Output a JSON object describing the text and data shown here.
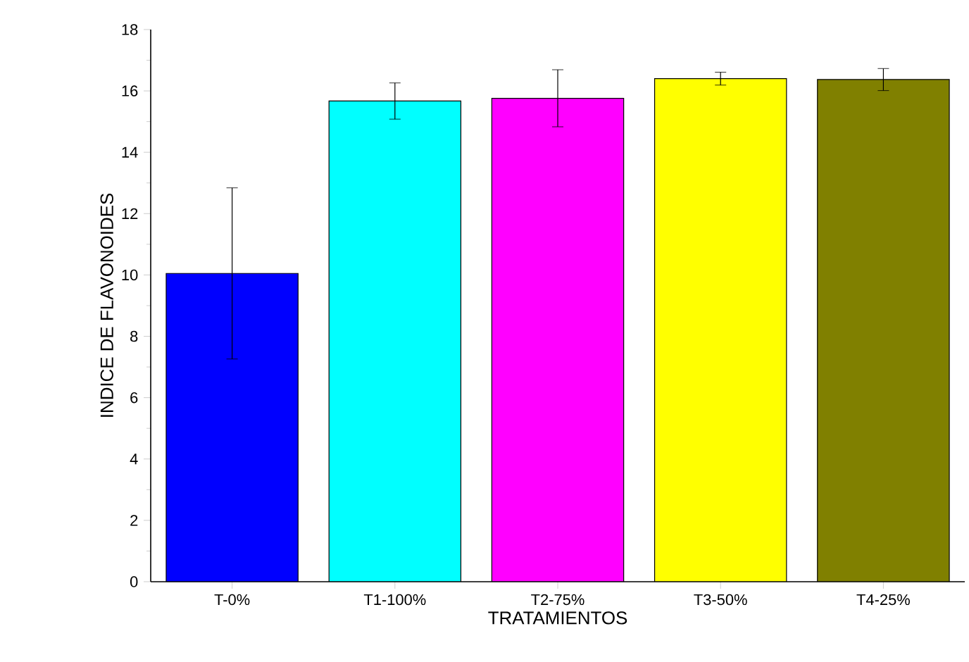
{
  "chart_data": {
    "type": "bar",
    "xlabel": "TRATAMIENTOS",
    "ylabel": "INDICE DE FLAVONOIDES",
    "categories": [
      "T-0%",
      "T1-100%",
      "T2-75%",
      "T3-50%",
      "T4-25%"
    ],
    "values": [
      10.05,
      15.67,
      15.76,
      16.4,
      16.37
    ],
    "errors": [
      2.79,
      0.59,
      0.93,
      0.21,
      0.36
    ],
    "colors": [
      "#0000ff",
      "#00ffff",
      "#ff00ff",
      "#ffff00",
      "#808000"
    ],
    "ylim": [
      0,
      18
    ],
    "yticks": [
      0,
      2,
      4,
      6,
      8,
      10,
      12,
      14,
      16,
      18
    ],
    "grid": false
  }
}
